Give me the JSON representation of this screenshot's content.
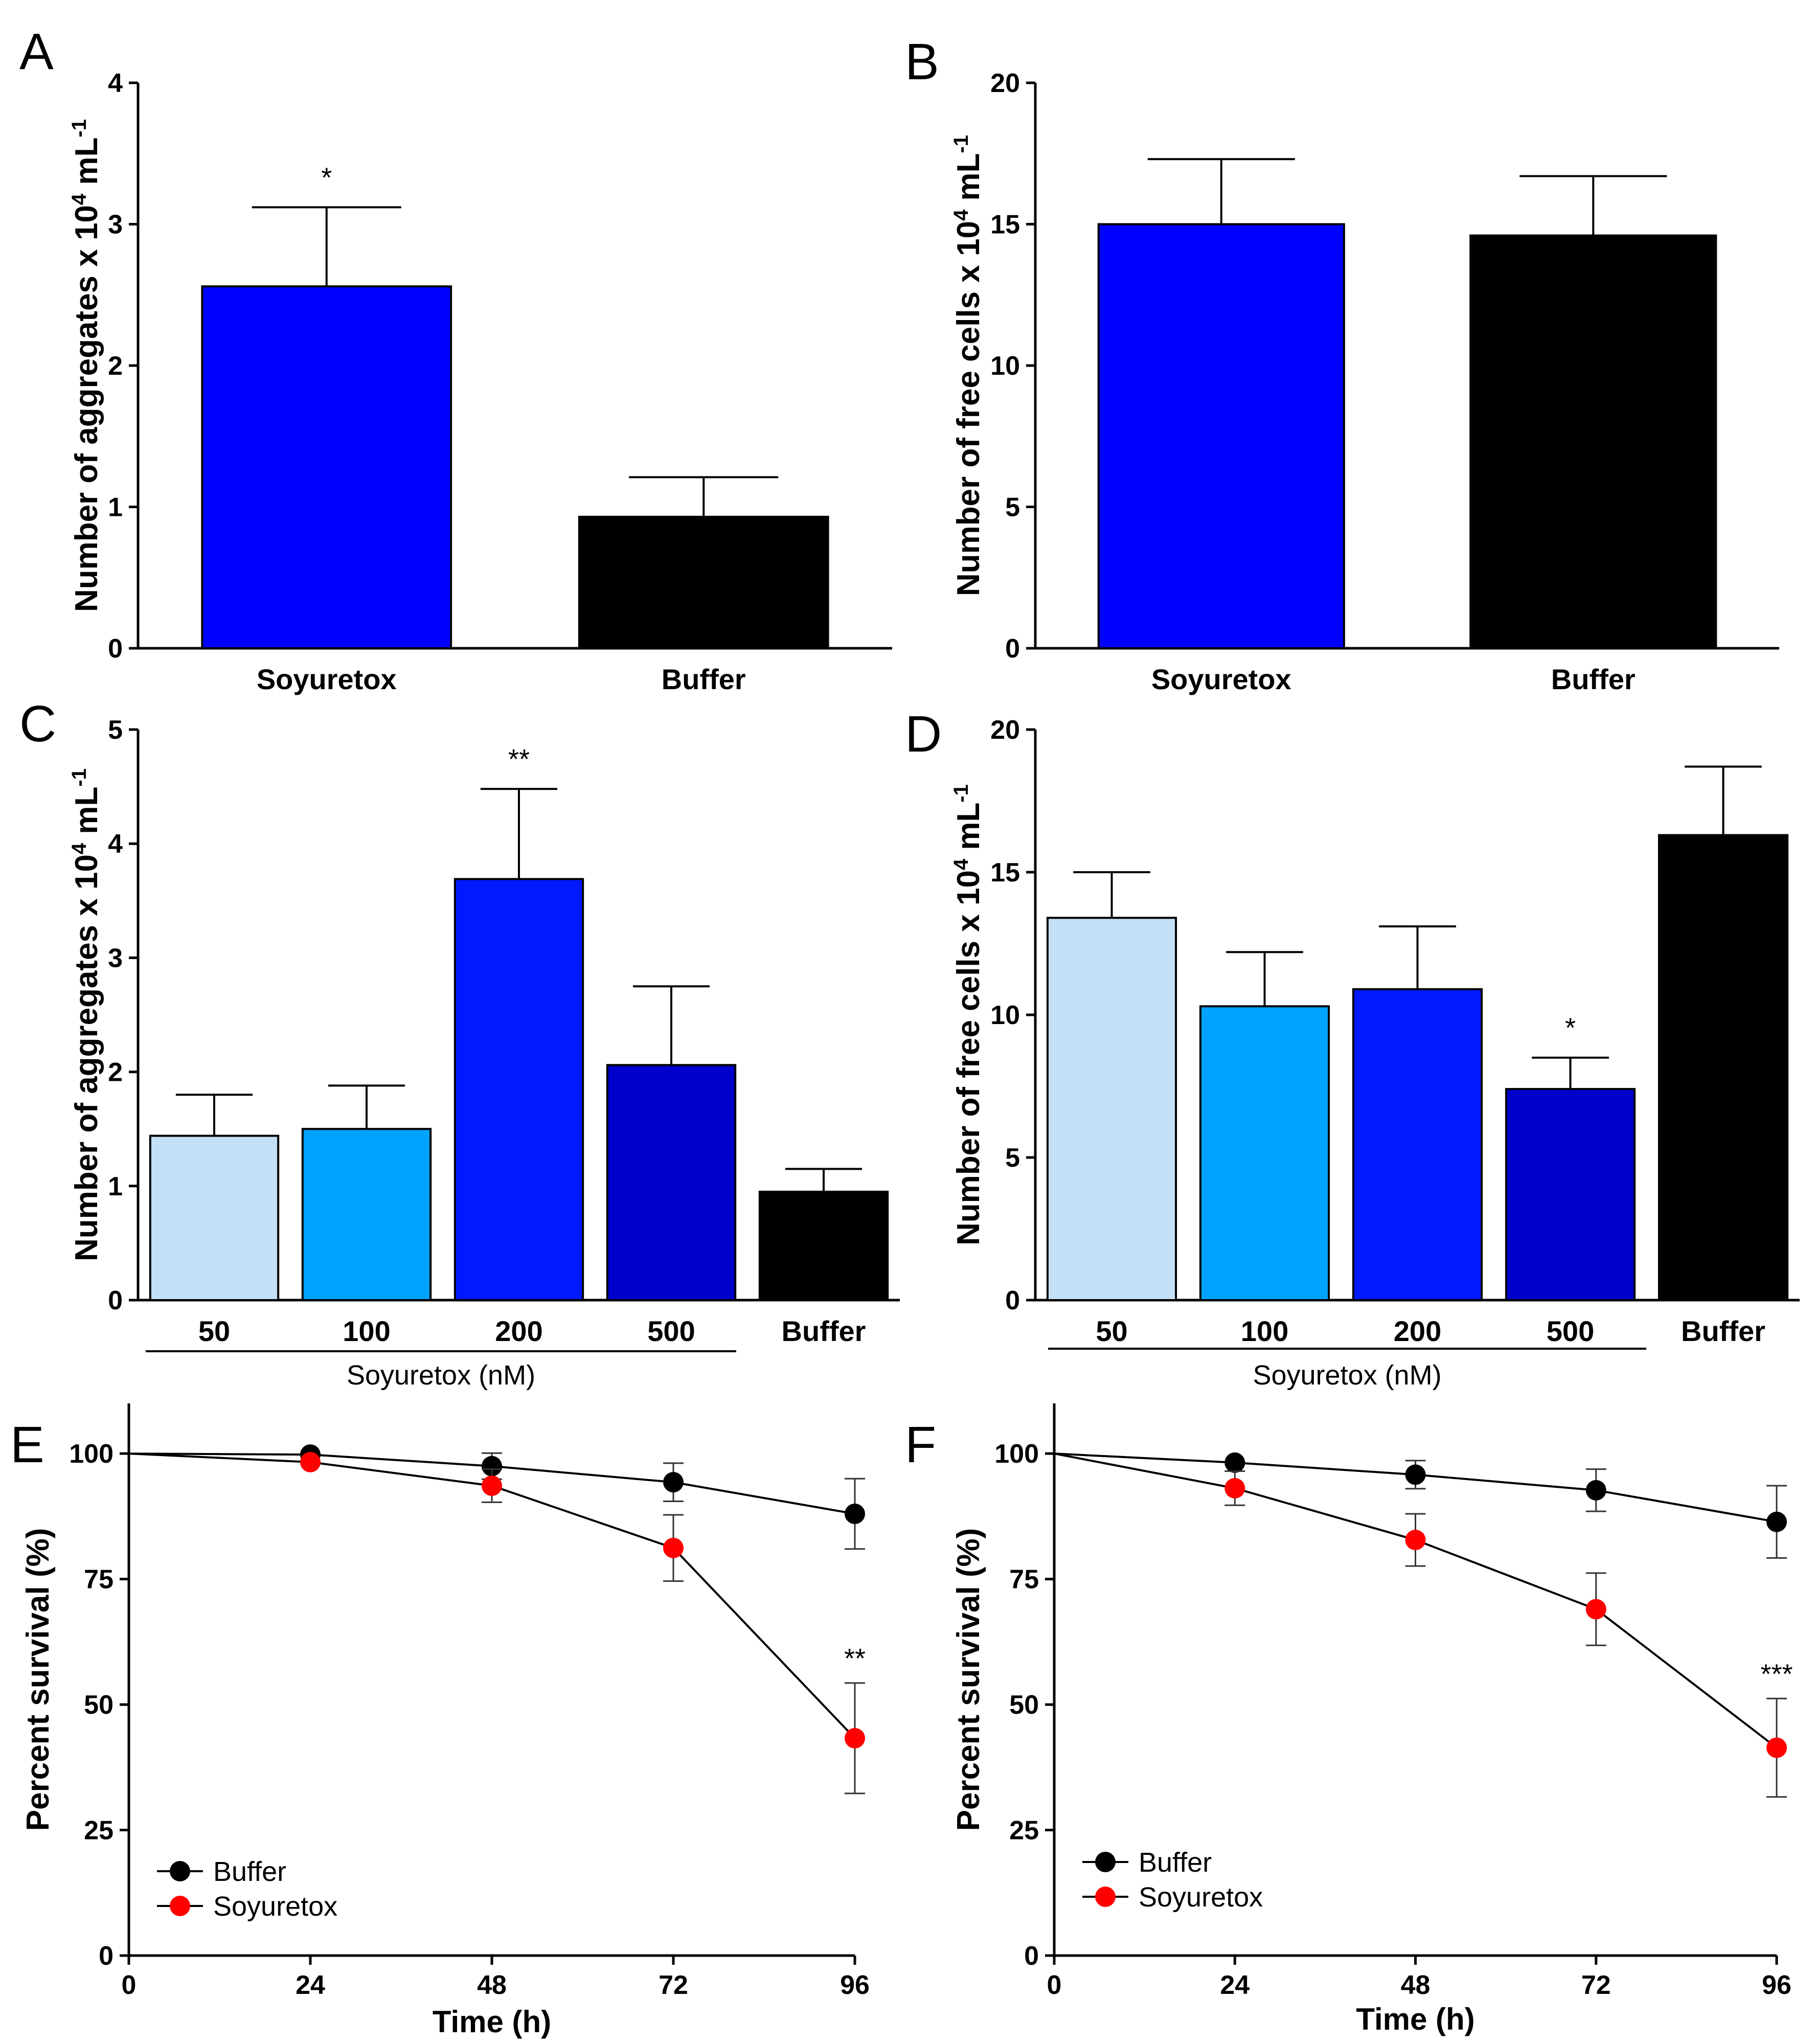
{
  "chart_data": [
    {
      "panel": "A",
      "type": "bar",
      "categories": [
        "Soyuretox",
        "Buffer"
      ],
      "values": [
        2.56,
        0.93
      ],
      "errors": [
        0.56,
        0.28
      ],
      "significance": [
        "*",
        ""
      ],
      "colors": [
        "#0000ff",
        "#000000"
      ],
      "ylabel": "Number of aggregates x 10",
      "ylabel_exp": "4",
      "ylabel_unit": " mL",
      "ylabel_unit_exp": "-1",
      "ylim": [
        0,
        4
      ],
      "yticks": [
        0,
        1,
        2,
        3,
        4
      ],
      "group_label": ""
    },
    {
      "panel": "B",
      "type": "bar",
      "categories": [
        "Soyuretox",
        "Buffer"
      ],
      "values": [
        15.0,
        14.6
      ],
      "errors": [
        2.3,
        2.1
      ],
      "significance": [
        "",
        ""
      ],
      "colors": [
        "#0000ff",
        "#000000"
      ],
      "ylabel": "Number of free cells x 10",
      "ylabel_exp": "4",
      "ylabel_unit": " mL",
      "ylabel_unit_exp": "-1",
      "ylim": [
        0,
        20
      ],
      "yticks": [
        0,
        5,
        10,
        15,
        20
      ],
      "group_label": ""
    },
    {
      "panel": "C",
      "type": "bar",
      "categories": [
        "50",
        "100",
        "200",
        "500",
        "Buffer"
      ],
      "values": [
        1.44,
        1.5,
        3.69,
        2.06,
        0.95
      ],
      "errors": [
        0.36,
        0.38,
        0.79,
        0.69,
        0.2
      ],
      "significance": [
        "",
        "",
        "**",
        "",
        ""
      ],
      "colors": [
        "#c3e0f7",
        "#00a2ff",
        "#0019ff",
        "#0000cc",
        "#000000"
      ],
      "ylabel": "Number of aggregates x 10",
      "ylabel_exp": "4",
      "ylabel_unit": " mL",
      "ylabel_unit_exp": "-1",
      "ylim": [
        0,
        5
      ],
      "yticks": [
        0,
        1,
        2,
        3,
        4,
        5
      ],
      "group_label": "Soyuretox (nM)"
    },
    {
      "panel": "D",
      "type": "bar",
      "categories": [
        "50",
        "100",
        "200",
        "500",
        "Buffer"
      ],
      "values": [
        13.4,
        10.3,
        10.9,
        7.4,
        16.3
      ],
      "errors": [
        1.6,
        1.9,
        2.2,
        1.1,
        2.4
      ],
      "significance": [
        "",
        "",
        "",
        "*",
        ""
      ],
      "colors": [
        "#c3e0f7",
        "#00a2ff",
        "#0019ff",
        "#0000cc",
        "#000000"
      ],
      "ylabel": "Number of free cells x 10",
      "ylabel_exp": "4",
      "ylabel_unit": " mL",
      "ylabel_unit_exp": "-1",
      "ylim": [
        0,
        20
      ],
      "yticks": [
        0,
        5,
        10,
        15,
        20
      ],
      "group_label": "Soyuretox (nM)"
    },
    {
      "panel": "E",
      "type": "line",
      "x": [
        0,
        24,
        48,
        72,
        96
      ],
      "series": [
        {
          "name": "Buffer",
          "color": "#000000",
          "values": [
            100,
            99.8,
            97.5,
            94.3,
            88.0
          ],
          "errors": [
            0,
            0,
            2.6,
            3.8,
            7.0
          ]
        },
        {
          "name": "Soyuretox",
          "color": "#ff0000",
          "values": [
            100,
            98.3,
            93.6,
            81.2,
            43.3
          ],
          "errors": [
            0,
            0,
            3.3,
            6.6,
            11.0
          ]
        }
      ],
      "significance": {
        "x": 96,
        "label": "**"
      },
      "xlabel": "Time (h)",
      "ylabel": "Percent survival (%)",
      "xlim": [
        0,
        96
      ],
      "xticks": [
        0,
        24,
        48,
        72,
        96
      ],
      "ylim": [
        0,
        110
      ],
      "yticks": [
        0,
        25,
        50,
        75,
        100
      ]
    },
    {
      "panel": "F",
      "type": "line",
      "x": [
        0,
        24,
        48,
        72,
        96
      ],
      "series": [
        {
          "name": "Buffer",
          "color": "#000000",
          "values": [
            100,
            98.2,
            95.8,
            92.7,
            86.4
          ],
          "errors": [
            0,
            0,
            2.8,
            4.2,
            7.2
          ]
        },
        {
          "name": "Soyuretox",
          "color": "#ff0000",
          "values": [
            100,
            93.1,
            82.8,
            69.0,
            41.4
          ],
          "errors": [
            0,
            3.4,
            5.2,
            7.2,
            9.8
          ]
        }
      ],
      "significance": {
        "x": 96,
        "label": "***"
      },
      "xlabel": "Time (h)",
      "ylabel": "Percent survival (%)",
      "xlim": [
        0,
        96
      ],
      "xticks": [
        0,
        24,
        48,
        72,
        96
      ],
      "ylim": [
        0,
        110
      ],
      "yticks": [
        0,
        25,
        50,
        75,
        100
      ]
    }
  ]
}
